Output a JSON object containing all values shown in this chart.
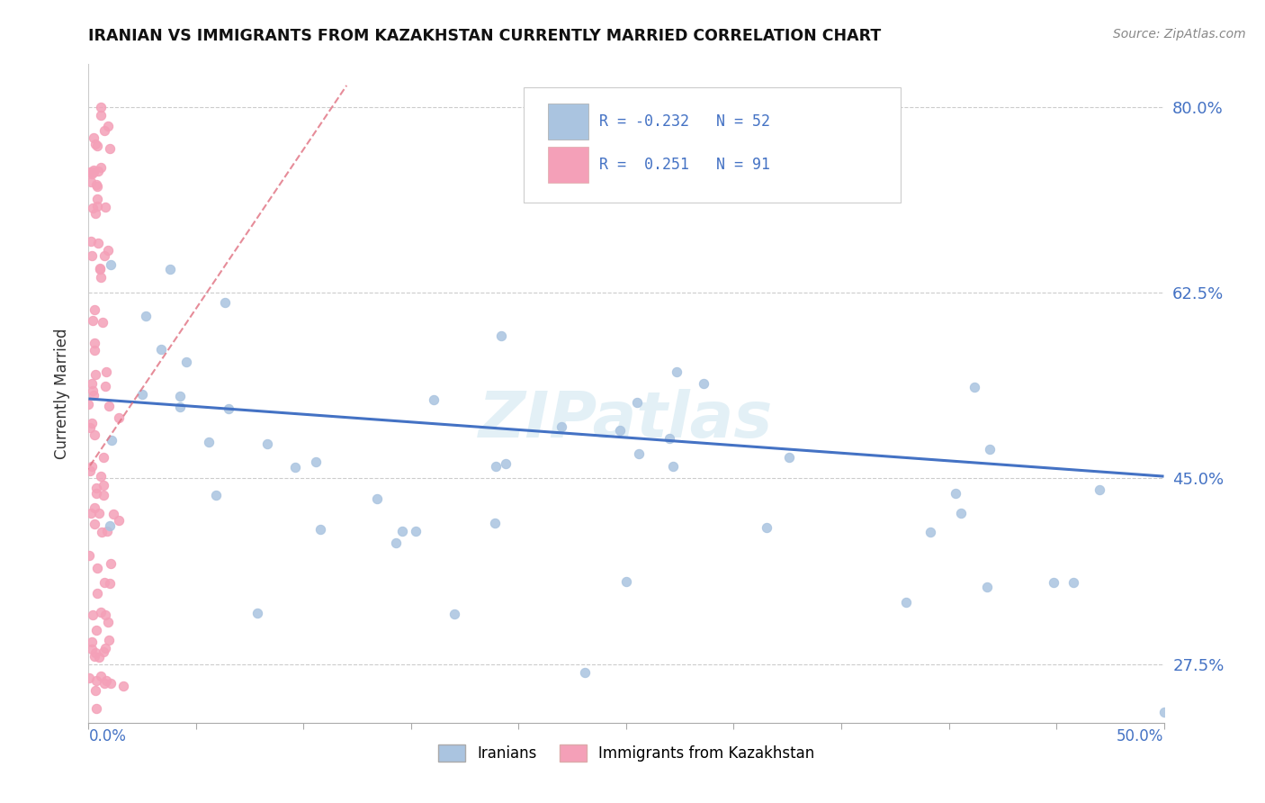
{
  "title": "IRANIAN VS IMMIGRANTS FROM KAZAKHSTAN CURRENTLY MARRIED CORRELATION CHART",
  "source": "Source: ZipAtlas.com",
  "ylabel": "Currently Married",
  "xmin": 0.0,
  "xmax": 0.5,
  "ymin": 0.22,
  "ymax": 0.84,
  "r_iranians": -0.232,
  "n_iranians": 52,
  "r_kazakhstan": 0.251,
  "n_kazakhstan": 91,
  "color_iranians": "#aac4e0",
  "color_kazakhstan": "#f4a0b8",
  "trend_color_iranians": "#4472c4",
  "trend_color_kazakhstan": "#e07080",
  "legend_label_iranians": "Iranians",
  "legend_label_kazakhstan": "Immigrants from Kazakhstan",
  "ytick_vals": [
    0.275,
    0.45,
    0.625,
    0.8
  ],
  "ytick_labels": [
    "27.5%",
    "45.0%",
    "62.5%",
    "80.0%"
  ],
  "iran_trend_y0": 0.525,
  "iran_trend_y1": 0.452,
  "kaz_trend_x0": 0.0,
  "kaz_trend_y0": 0.46,
  "kaz_trend_x1": 0.08,
  "kaz_trend_y1": 0.7
}
